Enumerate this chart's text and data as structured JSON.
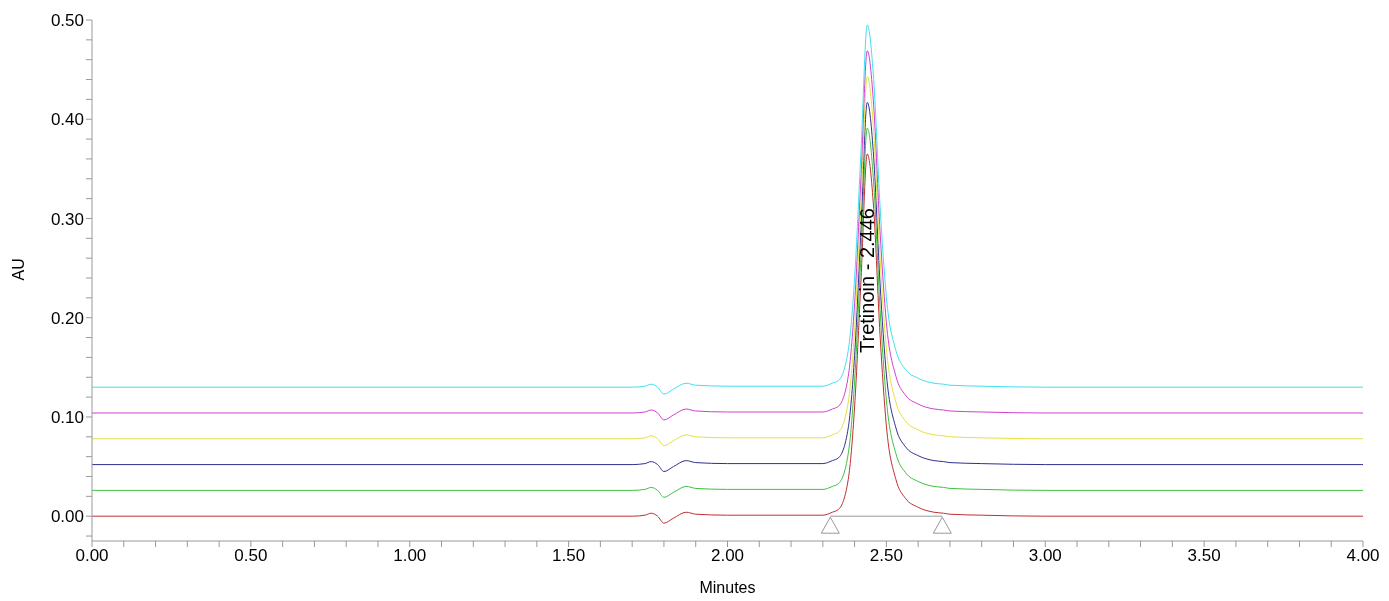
{
  "chart_data": {
    "type": "line",
    "xlabel": "Minutes",
    "ylabel": "AU",
    "x": [
      0,
      1.7,
      1.74,
      1.76,
      1.78,
      1.8,
      1.83,
      1.87,
      1.9,
      2.0,
      2.3,
      2.33,
      2.35,
      2.38,
      2.4,
      2.42,
      2.44,
      2.46,
      2.48,
      2.5,
      2.53,
      2.56,
      2.6,
      2.65,
      2.68,
      2.7,
      2.8,
      3.0,
      4.0
    ],
    "series": [
      {
        "color": "#c03030",
        "values": [
          0,
          0,
          0.001,
          0.003,
          0,
          -0.007,
          -0.002,
          0.004,
          0.002,
          0.001,
          0.001,
          0.004,
          0.007,
          0.037,
          0.11,
          0.237,
          0.365,
          0.31,
          0.183,
          0.091,
          0.037,
          0.018,
          0.009,
          0.004,
          0.003,
          0.002,
          0.001,
          0,
          0
        ]
      },
      {
        "color": "#40c040",
        "values": [
          0.026,
          0.026,
          0.027,
          0.029,
          0.026,
          0.019,
          0.024,
          0.03,
          0.028,
          0.027,
          0.027,
          0.03,
          0.033,
          0.063,
          0.136,
          0.263,
          0.391,
          0.336,
          0.209,
          0.117,
          0.063,
          0.044,
          0.035,
          0.03,
          0.029,
          0.028,
          0.027,
          0.026,
          0.026
        ]
      },
      {
        "color": "#303090",
        "values": [
          0.052,
          0.052,
          0.053,
          0.055,
          0.052,
          0.045,
          0.05,
          0.056,
          0.054,
          0.053,
          0.053,
          0.056,
          0.059,
          0.089,
          0.162,
          0.289,
          0.417,
          0.362,
          0.235,
          0.143,
          0.089,
          0.07,
          0.061,
          0.056,
          0.055,
          0.054,
          0.053,
          0.052,
          0.052
        ]
      },
      {
        "color": "#e8e040",
        "values": [
          0.078,
          0.078,
          0.079,
          0.081,
          0.078,
          0.071,
          0.076,
          0.082,
          0.08,
          0.079,
          0.079,
          0.082,
          0.085,
          0.115,
          0.188,
          0.315,
          0.443,
          0.388,
          0.261,
          0.169,
          0.115,
          0.096,
          0.087,
          0.082,
          0.081,
          0.08,
          0.079,
          0.078,
          0.078
        ]
      },
      {
        "color": "#d040d0",
        "values": [
          0.104,
          0.104,
          0.105,
          0.107,
          0.104,
          0.097,
          0.102,
          0.108,
          0.106,
          0.105,
          0.105,
          0.108,
          0.111,
          0.141,
          0.214,
          0.341,
          0.469,
          0.414,
          0.287,
          0.195,
          0.141,
          0.122,
          0.113,
          0.108,
          0.107,
          0.106,
          0.105,
          0.104,
          0.104
        ]
      },
      {
        "color": "#40e0f0",
        "values": [
          0.13,
          0.13,
          0.131,
          0.133,
          0.13,
          0.123,
          0.128,
          0.134,
          0.132,
          0.131,
          0.131,
          0.134,
          0.137,
          0.167,
          0.24,
          0.367,
          0.495,
          0.44,
          0.313,
          0.221,
          0.167,
          0.148,
          0.139,
          0.134,
          0.133,
          0.132,
          0.131,
          0.13,
          0.13
        ]
      }
    ],
    "marker": "none",
    "grid": false,
    "annotations": [
      "Tretinoin - 2.446"
    ],
    "xlim": [
      0,
      4
    ],
    "ylim": [
      -0.025,
      0.5
    ],
    "xticks": [
      {
        "value": 0,
        "label": "0.00"
      },
      {
        "value": 0.1,
        "label": null
      },
      {
        "value": 0.2,
        "label": null
      },
      {
        "value": 0.3,
        "label": null
      },
      {
        "value": 0.4,
        "label": null
      },
      {
        "value": 0.5,
        "label": "0.50"
      },
      {
        "value": 0.6,
        "label": null
      },
      {
        "value": 0.7,
        "label": null
      },
      {
        "value": 0.8,
        "label": null
      },
      {
        "value": 0.9,
        "label": null
      },
      {
        "value": 1,
        "label": "1.00"
      },
      {
        "value": 1.1,
        "label": null
      },
      {
        "value": 1.2,
        "label": null
      },
      {
        "value": 1.3,
        "label": null
      },
      {
        "value": 1.4,
        "label": null
      },
      {
        "value": 1.5,
        "label": "1.50"
      },
      {
        "value": 1.6,
        "label": null
      },
      {
        "value": 1.7,
        "label": null
      },
      {
        "value": 1.8,
        "label": null
      },
      {
        "value": 1.9,
        "label": null
      },
      {
        "value": 2,
        "label": "2.00"
      },
      {
        "value": 2.1,
        "label": null
      },
      {
        "value": 2.2,
        "label": null
      },
      {
        "value": 2.3,
        "label": null
      },
      {
        "value": 2.4,
        "label": null
      },
      {
        "value": 2.5,
        "label": "2.50"
      },
      {
        "value": 2.6,
        "label": null
      },
      {
        "value": 2.7,
        "label": null
      },
      {
        "value": 2.8,
        "label": null
      },
      {
        "value": 2.9,
        "label": null
      },
      {
        "value": 3,
        "label": "3.00"
      },
      {
        "value": 3.1,
        "label": null
      },
      {
        "value": 3.2,
        "label": null
      },
      {
        "value": 3.3,
        "label": null
      },
      {
        "value": 3.4,
        "label": null
      },
      {
        "value": 3.5,
        "label": "3.50"
      },
      {
        "value": 3.6,
        "label": null
      },
      {
        "value": 3.7,
        "label": null
      },
      {
        "value": 3.8,
        "label": null
      },
      {
        "value": 3.9,
        "label": null
      },
      {
        "value": 4,
        "label": "4.00"
      }
    ],
    "yticks": [
      {
        "value": -0.02,
        "label": null
      },
      {
        "value": 0,
        "label": "0.00"
      },
      {
        "value": 0.02,
        "label": null
      },
      {
        "value": 0.04,
        "label": null
      },
      {
        "value": 0.06,
        "label": null
      },
      {
        "value": 0.08,
        "label": null
      },
      {
        "value": 0.1,
        "label": "0.10"
      },
      {
        "value": 0.12,
        "label": null
      },
      {
        "value": 0.14,
        "label": null
      },
      {
        "value": 0.16,
        "label": null
      },
      {
        "value": 0.18,
        "label": null
      },
      {
        "value": 0.2,
        "label": "0.20"
      },
      {
        "value": 0.22,
        "label": null
      },
      {
        "value": 0.24,
        "label": null
      },
      {
        "value": 0.26,
        "label": null
      },
      {
        "value": 0.28,
        "label": null
      },
      {
        "value": 0.3,
        "label": "0.30"
      },
      {
        "value": 0.32,
        "label": null
      },
      {
        "value": 0.34,
        "label": null
      },
      {
        "value": 0.36,
        "label": null
      },
      {
        "value": 0.38,
        "label": null
      },
      {
        "value": 0.4,
        "label": "0.40"
      },
      {
        "value": 0.42,
        "label": null
      },
      {
        "value": 0.44,
        "label": null
      },
      {
        "value": 0.46,
        "label": null
      },
      {
        "value": 0.48,
        "label": null
      },
      {
        "value": 0.5,
        "label": "0.50"
      }
    ]
  }
}
